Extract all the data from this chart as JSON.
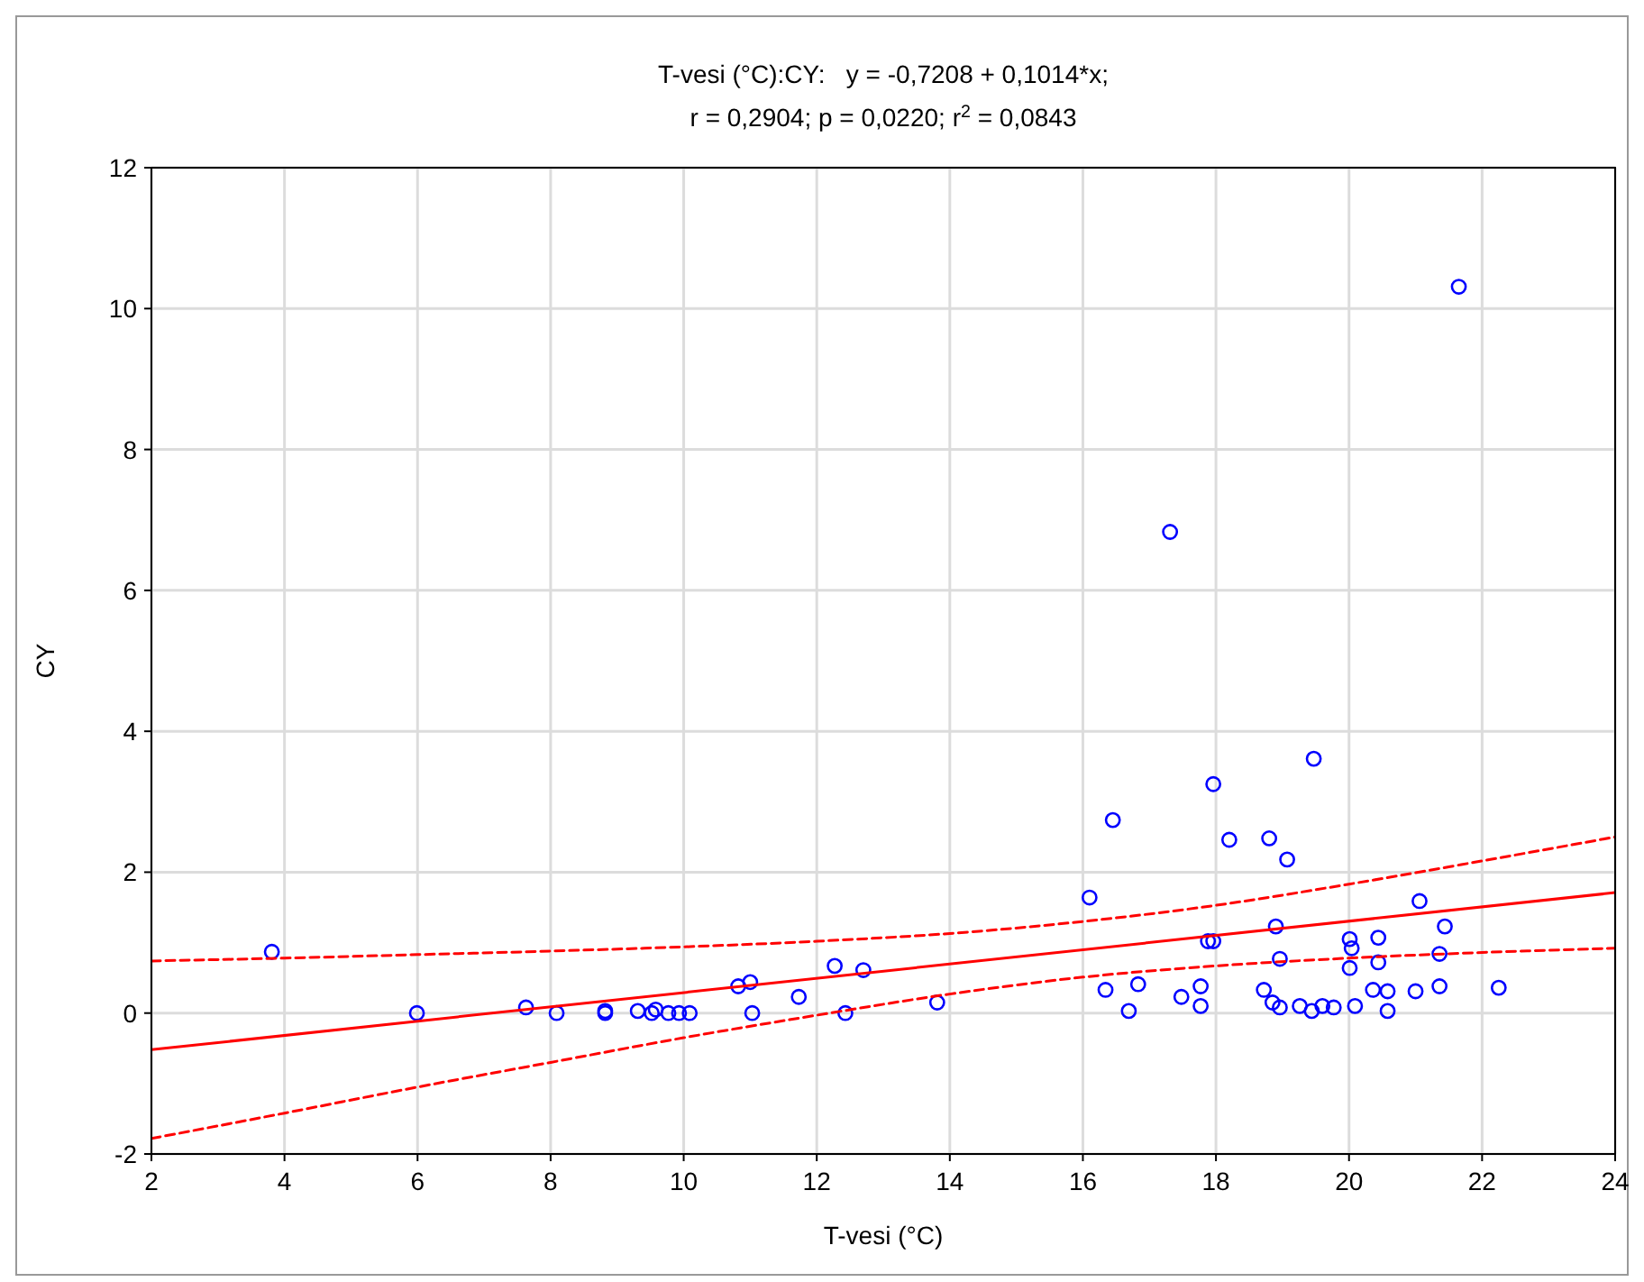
{
  "chart_data": {
    "type": "scatter",
    "title": "T-vesi (°C):CY:   y = -0,7208 + 0,1014*x;",
    "subtitle": "r = 0,2904; p = 0,0220; r$^{2}$ = 0,0843",
    "xlabel": "T-vesi (°C)",
    "ylabel": "CY",
    "xlim": [
      2,
      24
    ],
    "xticks": [
      2,
      4,
      6,
      8,
      10,
      12,
      14,
      16,
      18,
      20,
      22,
      24
    ],
    "ylim": [
      -2,
      12
    ],
    "yticks": [
      -2,
      0,
      2,
      4,
      6,
      8,
      10,
      12
    ],
    "grid": true,
    "series": [
      {
        "color": "#0000ff",
        "marker": "circle",
        "x": [
          3.81,
          5.99,
          7.63,
          8.09,
          8.82,
          8.82,
          9.31,
          9.58,
          9.52,
          9.77,
          9.93,
          10.09,
          10.82,
          11.0,
          11.03,
          11.73,
          12.27,
          12.43,
          12.7,
          13.81,
          16.1,
          16.34,
          16.45,
          16.69,
          16.83,
          17.31,
          17.48,
          17.77,
          17.77,
          17.88,
          17.96,
          17.96,
          18.2,
          18.72,
          18.8,
          18.85,
          18.96,
          18.9,
          18.96,
          19.07,
          19.26,
          19.44,
          19.47,
          19.6,
          19.77,
          20.01,
          20.04,
          20.01,
          20.09,
          20.36,
          20.44,
          20.44,
          20.58,
          20.58,
          21.0,
          21.06,
          21.36,
          21.36,
          21.44,
          21.65,
          22.25
        ],
        "values": [
          0.87,
          0,
          0.08,
          0,
          0.03,
          0,
          0.03,
          0.05,
          0,
          0,
          0,
          0,
          0.38,
          0.44,
          0,
          0.23,
          0.67,
          0,
          0.61,
          0.15,
          1.64,
          0.33,
          2.74,
          0.03,
          0.41,
          6.83,
          0.23,
          0.38,
          0.1,
          1.02,
          1.02,
          3.25,
          2.46,
          0.33,
          2.48,
          0.15,
          0.08,
          1.23,
          0.77,
          2.18,
          0.1,
          0.03,
          3.61,
          0.1,
          0.08,
          1.05,
          0.92,
          0.64,
          0.1,
          0.33,
          1.07,
          0.72,
          0.31,
          0.03,
          0.31,
          1.59,
          0.38,
          0.84,
          1.23,
          10.31,
          0.36
        ]
      },
      {
        "type": "line",
        "color": "#ff0000",
        "marker": "none",
        "line_style": "solid",
        "x": [
          2,
          24
        ],
        "values": [
          -0.52,
          1.71
        ]
      },
      {
        "type": "line",
        "color": "#ff0000",
        "marker": "none",
        "line_style": "dashed",
        "x": [
          2,
          4,
          6,
          8,
          10,
          12,
          14,
          16,
          18,
          20,
          22,
          24
        ],
        "values": [
          0.74,
          0.78,
          0.83,
          0.88,
          0.94,
          1.02,
          1.13,
          1.3,
          1.53,
          1.83,
          2.16,
          2.5
        ]
      },
      {
        "type": "line",
        "color": "#ff0000",
        "marker": "none",
        "line_style": "dashed",
        "x": [
          2,
          4,
          6,
          8,
          10,
          12,
          14,
          16,
          18,
          20,
          22,
          24
        ],
        "values": [
          -1.78,
          -1.42,
          -1.05,
          -0.7,
          -0.35,
          -0.03,
          0.27,
          0.51,
          0.67,
          0.78,
          0.86,
          0.92
        ]
      }
    ]
  }
}
